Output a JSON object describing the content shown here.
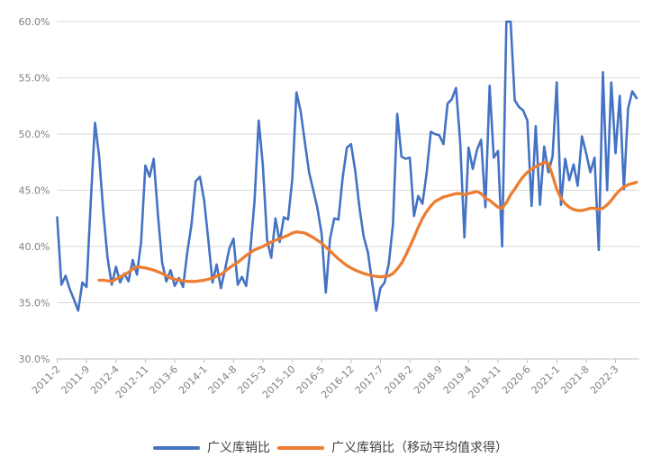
{
  "chart_data": {
    "type": "line",
    "title": "",
    "x_axis": {
      "tick_labels": [
        "2011-2",
        "2011-9",
        "2012-4",
        "2012-11",
        "2013-6",
        "2014-1",
        "2014-8",
        "2015-3",
        "2015-10",
        "2016-5",
        "2016-12",
        "2017-7",
        "2018-2",
        "2018-9",
        "2019-4",
        "2019-11",
        "2020-6",
        "2021-1",
        "2021-8",
        "2022-3"
      ],
      "points_per_tick": 7,
      "n_points": 139,
      "label_rotation_deg": -45
    },
    "y_axis": {
      "tick_labels": [
        "60.0%",
        "55.0%",
        "50.0%",
        "45.0%",
        "40.0%",
        "35.0%",
        "30.0%"
      ],
      "min": 30,
      "max": 60,
      "step": 5
    },
    "grid": true,
    "legend_position": "bottom",
    "series": [
      {
        "name": "广义库销比",
        "color": "#4472C4",
        "values": [
          42.6,
          36.6,
          37.4,
          36.2,
          35.3,
          34.3,
          36.8,
          36.4,
          44.0,
          51.0,
          48.0,
          43.0,
          39.0,
          36.6,
          38.2,
          36.8,
          37.6,
          36.9,
          38.8,
          37.5,
          40.4,
          47.2,
          46.2,
          47.8,
          42.8,
          38.6,
          36.9,
          37.9,
          36.5,
          37.2,
          36.4,
          39.5,
          42.0,
          45.8,
          46.2,
          44.1,
          40.6,
          36.8,
          38.4,
          36.3,
          38.0,
          39.8,
          40.7,
          36.6,
          37.3,
          36.5,
          39.6,
          44.0,
          51.2,
          47.2,
          40.6,
          39.0,
          42.5,
          40.4,
          42.6,
          42.4,
          46.0,
          53.7,
          52.0,
          49.3,
          46.6,
          45.0,
          43.4,
          41.1,
          35.9,
          40.7,
          42.5,
          42.4,
          46.1,
          48.8,
          49.1,
          46.7,
          43.5,
          40.9,
          39.5,
          36.9,
          34.3,
          36.3,
          36.8,
          38.5,
          42.0,
          51.8,
          48.0,
          47.8,
          47.9,
          42.7,
          44.5,
          43.8,
          46.5,
          50.2,
          50.0,
          49.9,
          49.1,
          52.7,
          53.1,
          54.1,
          49.3,
          40.8,
          48.8,
          46.9,
          48.6,
          49.5,
          43.5,
          54.3,
          47.9,
          48.5,
          40.0,
          60.0,
          60.0,
          53.0,
          52.4,
          52.1,
          51.2,
          43.6,
          50.7,
          43.7,
          48.9,
          46.6,
          48.0,
          54.6,
          43.7,
          47.8,
          45.9,
          47.3,
          45.4,
          49.8,
          48.3,
          46.6,
          47.9,
          39.7,
          55.5,
          45.0,
          54.6,
          48.3,
          53.4,
          45.1,
          52.3,
          53.8,
          53.2
        ]
      },
      {
        "name": "广义库销比（移动平均值求得）",
        "color": "#ED7D31",
        "values": [
          null,
          null,
          null,
          null,
          null,
          null,
          null,
          null,
          null,
          null,
          37.0,
          37.0,
          36.95,
          36.9,
          37.1,
          37.3,
          37.5,
          37.7,
          38.0,
          38.2,
          38.15,
          38.1,
          38.0,
          37.9,
          37.75,
          37.6,
          37.4,
          37.2,
          37.1,
          37.0,
          36.95,
          36.9,
          36.9,
          36.9,
          36.95,
          37.0,
          37.1,
          37.2,
          37.35,
          37.5,
          37.8,
          38.1,
          38.35,
          38.6,
          38.9,
          39.2,
          39.45,
          39.7,
          39.85,
          40.0,
          40.2,
          40.4,
          40.55,
          40.7,
          40.85,
          41.0,
          41.2,
          41.3,
          41.25,
          41.2,
          41.0,
          40.8,
          40.55,
          40.3,
          39.95,
          39.6,
          39.25,
          38.9,
          38.6,
          38.3,
          38.1,
          37.9,
          37.75,
          37.6,
          37.5,
          37.4,
          37.35,
          37.3,
          37.35,
          37.4,
          37.6,
          38.0,
          38.5,
          39.2,
          40.0,
          40.8,
          41.7,
          42.5,
          43.1,
          43.6,
          44.0,
          44.2,
          44.4,
          44.5,
          44.6,
          44.7,
          44.7,
          44.6,
          44.7,
          44.8,
          44.9,
          44.7,
          44.3,
          44.1,
          43.8,
          43.5,
          43.4,
          43.9,
          44.6,
          45.1,
          45.7,
          46.2,
          46.6,
          46.9,
          47.1,
          47.3,
          47.5,
          47.4,
          46.3,
          45.1,
          44.3,
          43.8,
          43.5,
          43.3,
          43.2,
          43.2,
          43.3,
          43.4,
          43.4,
          43.3,
          43.4,
          43.7,
          44.1,
          44.6,
          45.0,
          45.3,
          45.5,
          45.6,
          45.7
        ]
      }
    ],
    "colors": {
      "gridline": "#D9D9D9",
      "axis_line": "#BFBFBF",
      "tick_label": "#808080",
      "legend_text": "#404040",
      "background": "#FFFFFF"
    }
  }
}
